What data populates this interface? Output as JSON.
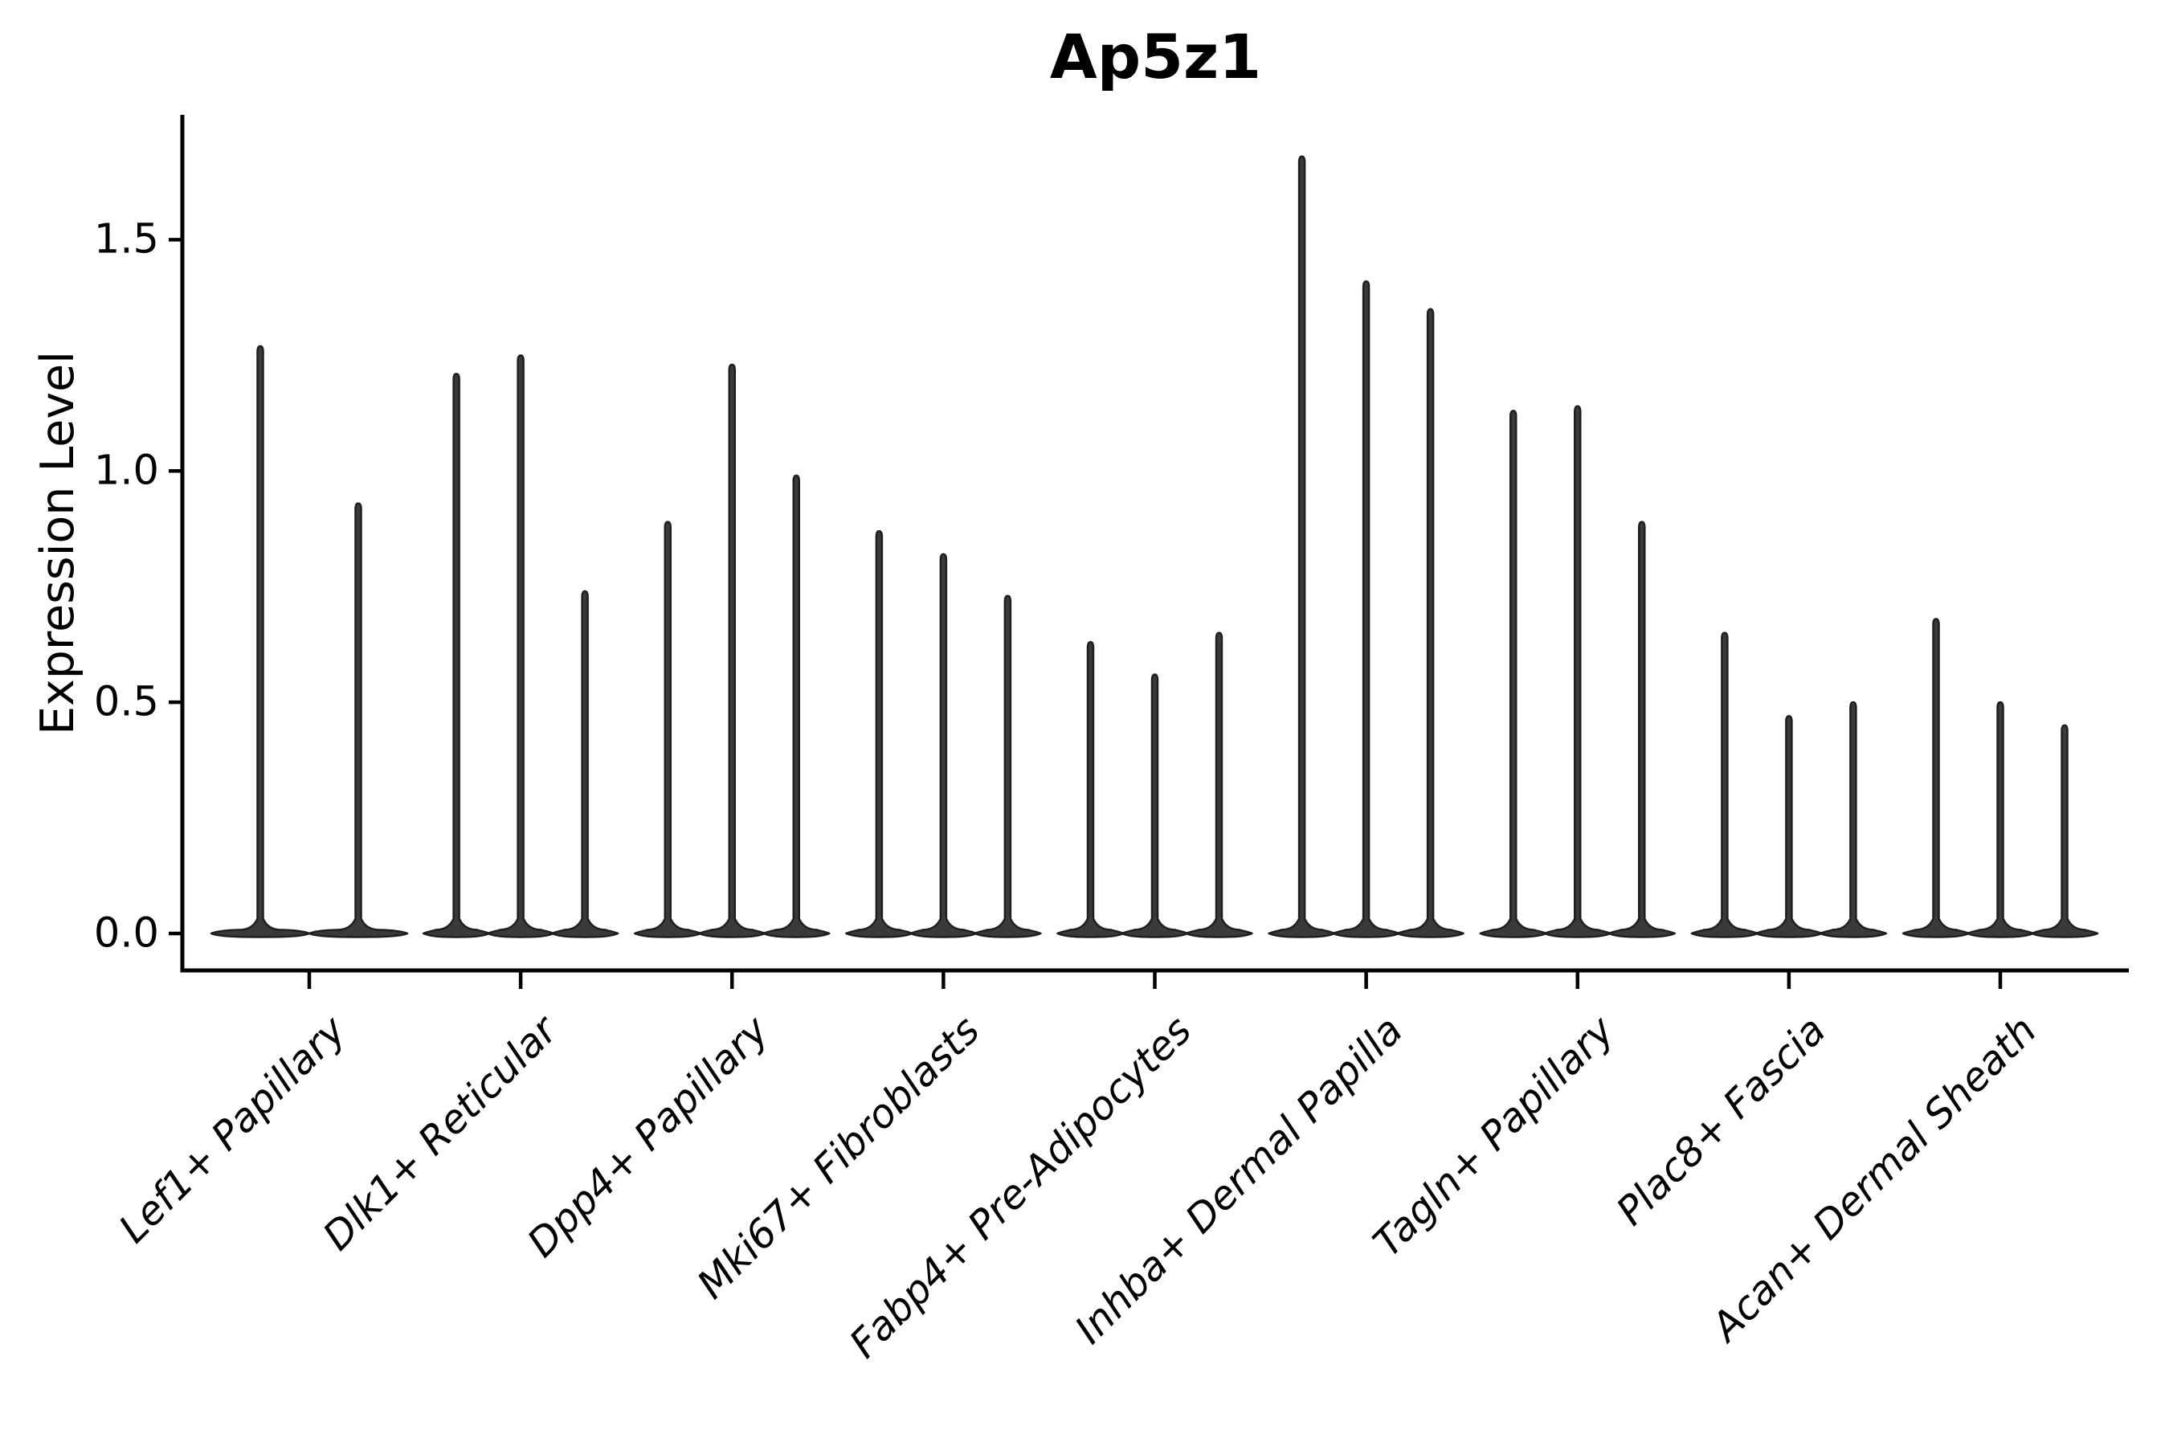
{
  "figure": {
    "background": "#ffffff",
    "text_color": "#000000",
    "axis_color": "#000000"
  },
  "chart_data": {
    "type": "violin",
    "title": "Ap5z1",
    "xlabel": "",
    "ylabel": "Expression Level",
    "ylim": [
      -0.08,
      1.77
    ],
    "yticks": [
      0.0,
      0.5,
      1.0,
      1.5
    ],
    "ytick_labels": [
      "0.0",
      "0.5",
      "1.0",
      "1.5"
    ],
    "grid": false,
    "legend": "none",
    "violin_fill_color": "#3a3a3a",
    "violin_edge_color": "#1f1f1f",
    "categories": [
      "Lef1+ Papillary",
      "Dlk1+ Reticular",
      "Dpp4+ Papillary",
      "Mki67+ Fibroblasts",
      "Fabp4+ Pre-Adipocytes",
      "Inhba+ Dermal Papilla",
      "Tagln+ Papillary",
      "Plac8+ Fascia",
      "Acan+ Dermal Sheath"
    ],
    "series": [
      {
        "category": "Lef1+ Papillary",
        "violin_peak_expression": [
          1.27,
          0.93
        ]
      },
      {
        "category": "Dlk1+ Reticular",
        "violin_peak_expression": [
          1.21,
          1.25,
          0.74
        ]
      },
      {
        "category": "Dpp4+ Papillary",
        "violin_peak_expression": [
          0.89,
          1.23,
          0.99
        ]
      },
      {
        "category": "Mki67+ Fibroblasts",
        "violin_peak_expression": [
          0.87,
          0.82,
          0.73
        ]
      },
      {
        "category": "Fabp4+ Pre-Adipocytes",
        "violin_peak_expression": [
          0.63,
          0.56,
          0.65
        ]
      },
      {
        "category": "Inhba+ Dermal Papilla",
        "violin_peak_expression": [
          1.68,
          1.41,
          1.35
        ]
      },
      {
        "category": "Tagln+ Papillary",
        "violin_peak_expression": [
          1.13,
          1.14,
          0.89
        ]
      },
      {
        "category": "Plac8+ Fascia",
        "violin_peak_expression": [
          0.65,
          0.47,
          0.5
        ]
      },
      {
        "category": "Acan+ Dermal Sheath",
        "violin_peak_expression": [
          0.68,
          0.5,
          0.45
        ]
      }
    ]
  }
}
